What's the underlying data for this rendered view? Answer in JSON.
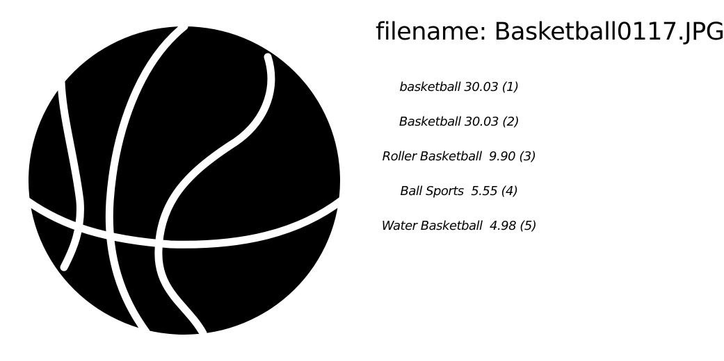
{
  "image": {
    "subject": "basketball",
    "icon": "basketball-icon",
    "fill_color": "#000000",
    "line_color": "#ffffff"
  },
  "filename": {
    "text": "filename: Basketball0117.JPG"
  },
  "predictions": [
    {
      "text": "basketball 30.03 (1)"
    },
    {
      "text": "Basketball 30.03 (2)"
    },
    {
      "text": "Roller Basketball  9.90 (3)"
    },
    {
      "text": "Ball Sports  5.55 (4)"
    },
    {
      "text": "Water Basketball  4.98 (5)"
    }
  ]
}
